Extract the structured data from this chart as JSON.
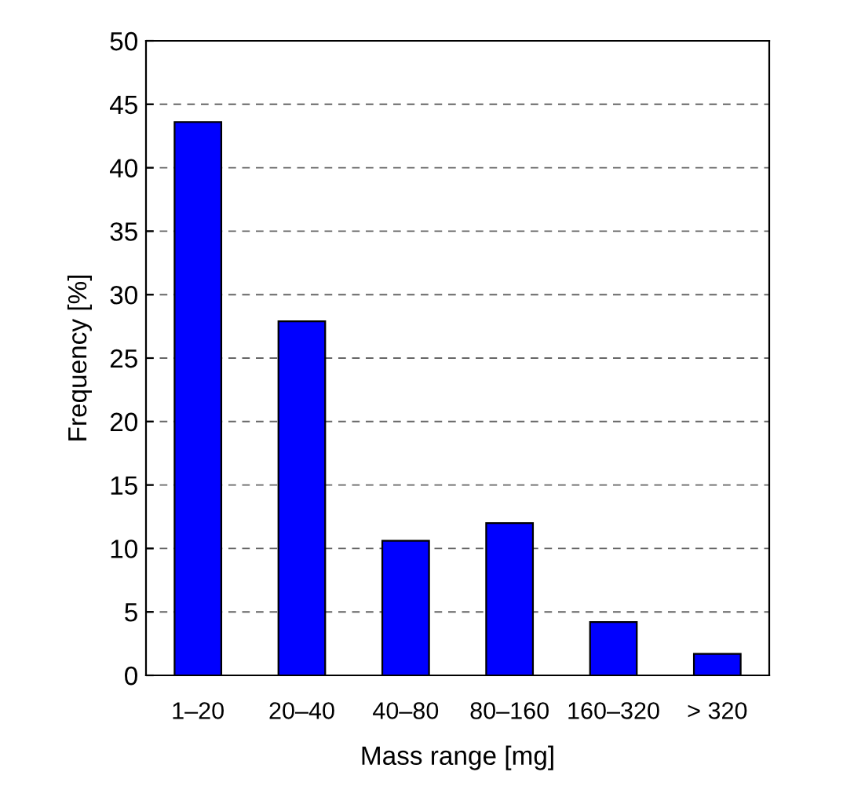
{
  "chart_data": {
    "type": "bar",
    "xlabel": "Mass range [mg]",
    "ylabel": "Frequency [%]",
    "categories": [
      "1–20",
      "20–40",
      "40–80",
      "80–160",
      "160–320",
      "> 320"
    ],
    "values": [
      43.6,
      27.9,
      10.6,
      12.0,
      4.2,
      1.7
    ],
    "color": "#0000ff",
    "ylim": [
      0,
      50
    ],
    "yticks": [
      0,
      5,
      10,
      15,
      20,
      25,
      30,
      35,
      40,
      45,
      50
    ],
    "grid": "y"
  }
}
